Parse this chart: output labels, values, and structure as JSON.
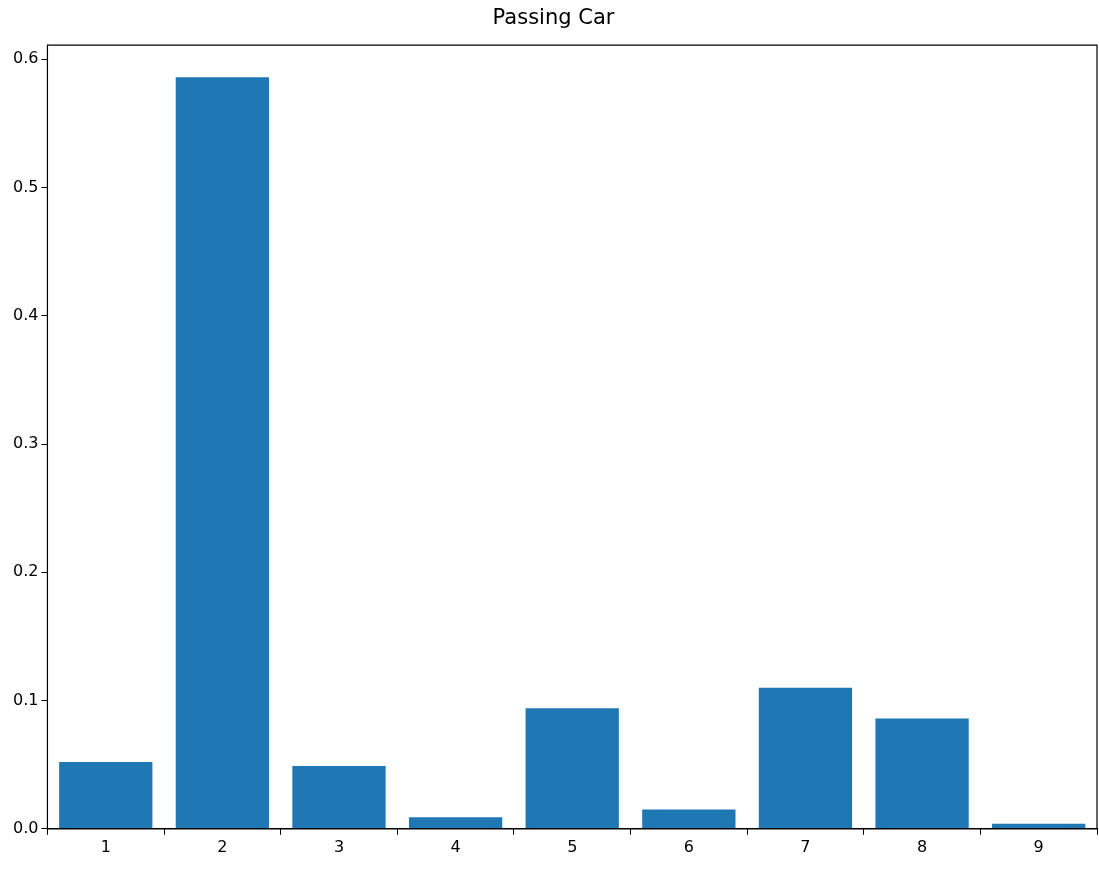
{
  "chart_data": {
    "type": "bar",
    "title": "Passing Car",
    "categories": [
      "1",
      "2",
      "3",
      "4",
      "5",
      "6",
      "7",
      "8",
      "9"
    ],
    "values": [
      0.052,
      0.586,
      0.049,
      0.009,
      0.094,
      0.015,
      0.11,
      0.086,
      0.004
    ],
    "color": "#1f77b4",
    "ylim": [
      0,
      0.611
    ],
    "yticks": [
      {
        "value": 0,
        "label": "0.0"
      },
      {
        "value": 0.1,
        "label": "0.1"
      },
      {
        "value": 0.2,
        "label": "0.2"
      },
      {
        "value": 0.3,
        "label": "0.3"
      },
      {
        "value": 0.4,
        "label": "0.4"
      },
      {
        "value": 0.5,
        "label": "0.5"
      },
      {
        "value": 0.6,
        "label": "0.6"
      }
    ],
    "grid": false,
    "legend": false
  }
}
